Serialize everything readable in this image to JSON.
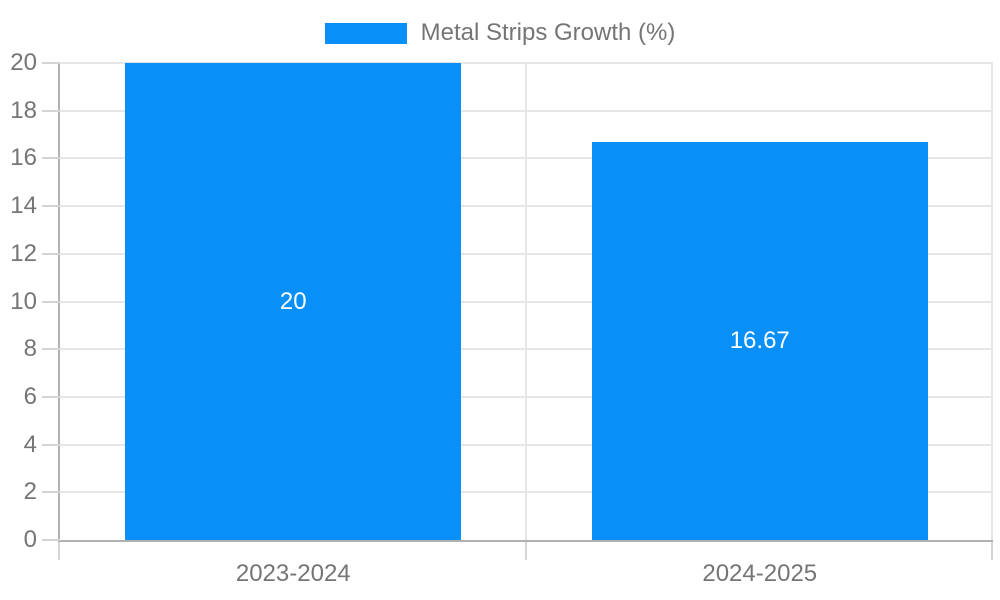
{
  "legend": {
    "label": "Metal Strips Growth (%)"
  },
  "colors": {
    "bar": "#0890f8",
    "grid": "#e6e6e6",
    "axis": "#b0b0b0",
    "tick": "#d4d4d4",
    "text": "#757575",
    "value": "#ffffff",
    "bg": "#ffffff"
  },
  "chart_data": {
    "type": "bar",
    "title": "",
    "legend": "Metal Strips Growth (%)",
    "legend_position": "top-center",
    "categories": [
      "2023-2024",
      "2024-2025"
    ],
    "series": [
      {
        "name": "Metal Strips Growth (%)",
        "values": [
          20,
          16.67
        ],
        "value_labels": [
          "20",
          "16.67"
        ],
        "color": "#0890f8"
      }
    ],
    "xlabel": "",
    "ylabel": "",
    "ylim": [
      0,
      20
    ],
    "y_ticks": [
      0,
      2,
      4,
      6,
      8,
      10,
      12,
      14,
      16,
      18,
      20
    ],
    "grid": true,
    "value_labels_position": "center-of-bar"
  }
}
